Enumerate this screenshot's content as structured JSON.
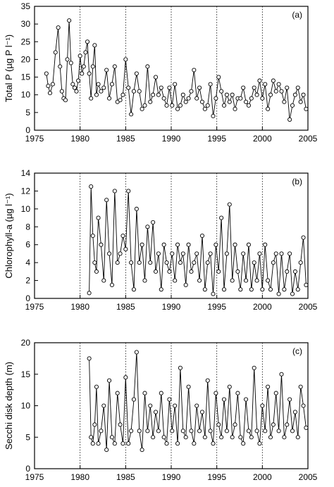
{
  "chart_data": [
    {
      "type": "line",
      "panel_label": "(a)",
      "ylabel": "Total P (µg P l⁻¹)",
      "xlim": [
        1975,
        2005
      ],
      "ylim": [
        0,
        35
      ],
      "xticks": [
        "1975",
        "1980",
        "1985",
        "1990",
        "1995",
        "2000",
        "2005"
      ],
      "yticks": [
        "0",
        "5",
        "10",
        "15",
        "20",
        "25",
        "30",
        "35"
      ],
      "reference_lines_x": [
        1980,
        1985,
        1990,
        1995,
        2000
      ],
      "x": [
        1976.3,
        1976.5,
        1976.7,
        1977.0,
        1977.3,
        1977.6,
        1977.8,
        1978.0,
        1978.2,
        1978.4,
        1978.6,
        1978.8,
        1979.0,
        1979.2,
        1979.4,
        1979.6,
        1979.8,
        1980.0,
        1980.2,
        1980.4,
        1980.6,
        1980.8,
        1981.0,
        1981.2,
        1981.4,
        1981.6,
        1981.8,
        1982.0,
        1982.3,
        1982.6,
        1982.9,
        1983.2,
        1983.5,
        1983.8,
        1984.1,
        1984.4,
        1984.7,
        1985.0,
        1985.3,
        1985.6,
        1985.9,
        1986.2,
        1986.5,
        1986.8,
        1987.1,
        1987.4,
        1987.7,
        1988.0,
        1988.3,
        1988.6,
        1988.9,
        1989.2,
        1989.5,
        1989.8,
        1990.1,
        1990.4,
        1990.7,
        1991.0,
        1991.3,
        1991.6,
        1991.9,
        1992.2,
        1992.5,
        1992.8,
        1993.1,
        1993.4,
        1993.7,
        1994.0,
        1994.3,
        1994.6,
        1994.9,
        1995.2,
        1995.5,
        1995.8,
        1996.1,
        1996.4,
        1996.7,
        1997.0,
        1997.3,
        1997.6,
        1997.9,
        1998.2,
        1998.5,
        1998.8,
        1999.1,
        1999.4,
        1999.7,
        2000.0,
        2000.3,
        2000.6,
        2000.9,
        2001.2,
        2001.5,
        2001.8,
        2002.1,
        2002.4,
        2002.7,
        2003.0,
        2003.3,
        2003.6,
        2003.9,
        2004.2,
        2004.5,
        2004.8
      ],
      "y": [
        16,
        12.5,
        10.5,
        13,
        22,
        29,
        18,
        11,
        9,
        8.5,
        20,
        31,
        19,
        13,
        12,
        11,
        14,
        21,
        16,
        18,
        22,
        25,
        16,
        9,
        18,
        24,
        10,
        13,
        11,
        12,
        17,
        9,
        13,
        18,
        8,
        8.5,
        10,
        20,
        12,
        4.5,
        11,
        16,
        11,
        6,
        7,
        18,
        8,
        10,
        15,
        10,
        12,
        9,
        7,
        12,
        7,
        13,
        6,
        7,
        10,
        8,
        9,
        11,
        17,
        9,
        12,
        8,
        6,
        7,
        13,
        4,
        9,
        15,
        11,
        7,
        10,
        8,
        10,
        6,
        9,
        9,
        12,
        8,
        7,
        9,
        12,
        10,
        14,
        9,
        13,
        6,
        10,
        14,
        11,
        13,
        11,
        8,
        12,
        3,
        7,
        10,
        12,
        8,
        10,
        6
      ]
    },
    {
      "type": "line",
      "panel_label": "(b)",
      "ylabel": "Chlorophyll-a (µg l⁻¹)",
      "xlim": [
        1975,
        2005
      ],
      "ylim": [
        0,
        14
      ],
      "xticks": [
        "1975",
        "1980",
        "1985",
        "1990",
        "1995",
        "2000",
        "2005"
      ],
      "yticks": [
        "0",
        "2",
        "4",
        "6",
        "8",
        "10",
        "12",
        "14"
      ],
      "reference_lines_x": [
        1980,
        1985,
        1990,
        1995,
        2000
      ],
      "x": [
        1981.0,
        1981.2,
        1981.4,
        1981.6,
        1981.8,
        1982.0,
        1982.3,
        1982.6,
        1982.9,
        1983.2,
        1983.5,
        1983.8,
        1984.1,
        1984.4,
        1984.7,
        1985.0,
        1985.3,
        1985.6,
        1985.9,
        1986.2,
        1986.5,
        1986.8,
        1987.1,
        1987.4,
        1987.7,
        1988.0,
        1988.3,
        1988.6,
        1988.9,
        1989.2,
        1989.5,
        1989.8,
        1990.1,
        1990.4,
        1990.7,
        1991.0,
        1991.3,
        1991.6,
        1991.9,
        1992.2,
        1992.5,
        1992.8,
        1993.1,
        1993.4,
        1993.7,
        1994.0,
        1994.3,
        1994.6,
        1994.9,
        1995.2,
        1995.5,
        1995.8,
        1996.1,
        1996.4,
        1996.7,
        1997.0,
        1997.3,
        1997.6,
        1997.9,
        1998.2,
        1998.5,
        1998.8,
        1999.1,
        1999.4,
        1999.7,
        2000.0,
        2000.3,
        2000.6,
        2000.9,
        2001.2,
        2001.5,
        2001.8,
        2002.1,
        2002.4,
        2002.7,
        2003.0,
        2003.3,
        2003.6,
        2003.9,
        2004.2,
        2004.5,
        2004.8
      ],
      "y": [
        0.6,
        12.5,
        7,
        4,
        3,
        9,
        6,
        2,
        11,
        5,
        1.5,
        12,
        4,
        5,
        7,
        5.5,
        12,
        4,
        1,
        10,
        4,
        6,
        2,
        8,
        4,
        8.5,
        3,
        5,
        1,
        6,
        4,
        3,
        5,
        2,
        6,
        4,
        5,
        1.5,
        6,
        3,
        4,
        5,
        2,
        7,
        1,
        4,
        5,
        0.5,
        6,
        3,
        9,
        1,
        5,
        10.5,
        2,
        6,
        3,
        1,
        5,
        2,
        6,
        1,
        4,
        2,
        5,
        1,
        6,
        2,
        1,
        4,
        5,
        0.5,
        5,
        1,
        3,
        5,
        0.5,
        3,
        1,
        4,
        6.8,
        1.5
      ]
    },
    {
      "type": "line",
      "panel_label": "(c)",
      "ylabel": "Secchi disk depth (m)",
      "xlim": [
        1975,
        2005
      ],
      "ylim": [
        0,
        20
      ],
      "xticks": [
        "1975",
        "1980",
        "1985",
        "1990",
        "1995",
        "2000",
        "2005"
      ],
      "yticks": [
        "0",
        "5",
        "10",
        "15",
        "20"
      ],
      "reference_lines_x": [
        1980,
        1985,
        1990,
        1995,
        2000
      ],
      "x": [
        1981.0,
        1981.2,
        1981.4,
        1981.6,
        1981.8,
        1982.0,
        1982.3,
        1982.6,
        1982.9,
        1983.2,
        1983.5,
        1983.8,
        1984.1,
        1984.4,
        1984.7,
        1985.0,
        1985.3,
        1985.6,
        1985.9,
        1986.2,
        1986.5,
        1986.8,
        1987.1,
        1987.4,
        1987.7,
        1988.0,
        1988.3,
        1988.6,
        1988.9,
        1989.2,
        1989.5,
        1989.8,
        1990.1,
        1990.4,
        1990.7,
        1991.0,
        1991.3,
        1991.6,
        1991.9,
        1992.2,
        1992.5,
        1992.8,
        1993.1,
        1993.4,
        1993.7,
        1994.0,
        1994.3,
        1994.6,
        1994.9,
        1995.2,
        1995.5,
        1995.8,
        1996.1,
        1996.4,
        1996.7,
        1997.0,
        1997.3,
        1997.6,
        1997.9,
        1998.2,
        1998.5,
        1998.8,
        1999.1,
        1999.4,
        1999.7,
        2000.0,
        2000.3,
        2000.6,
        2000.9,
        2001.2,
        2001.5,
        2001.8,
        2002.1,
        2002.4,
        2002.7,
        2003.0,
        2003.3,
        2003.6,
        2003.9,
        2004.2,
        2004.5,
        2004.8
      ],
      "y": [
        17.5,
        5,
        4,
        7,
        13,
        4,
        6,
        10,
        3,
        14,
        5,
        4,
        12,
        7,
        4,
        14.5,
        4,
        6,
        11,
        18.5,
        6,
        3,
        12,
        6,
        10,
        5,
        9,
        6,
        12,
        5,
        4,
        11,
        6,
        10,
        4,
        16,
        6,
        5,
        13,
        6,
        4,
        10,
        6,
        9,
        5,
        14,
        6,
        4,
        12,
        7,
        5,
        11,
        6,
        13,
        5,
        7,
        12,
        5,
        4,
        11,
        6,
        5,
        16,
        6,
        4,
        10,
        6,
        13,
        5,
        7,
        12,
        6,
        15,
        5,
        7,
        11,
        6,
        9,
        5,
        13,
        10,
        6.5
      ]
    }
  ]
}
